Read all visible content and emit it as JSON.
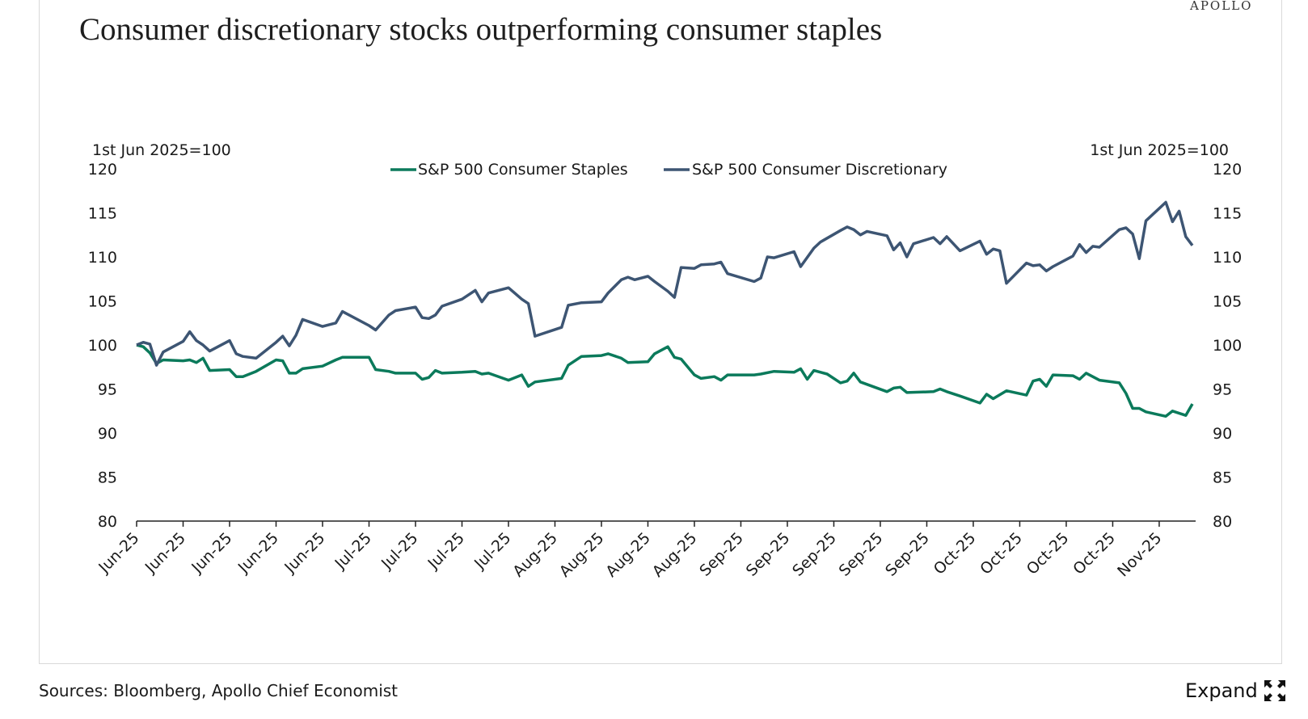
{
  "brand": "APOLLO",
  "title": "Consumer discretionary stocks outperforming consumer staples",
  "footer": {
    "sources": "Sources: Bloomberg, Apollo Chief Economist",
    "expand_label": "Expand",
    "expand_icon": "expand-arrows-icon"
  },
  "chart_data": {
    "type": "line",
    "title": "Consumer discretionary stocks outperforming consumer staples",
    "ylabel_left": "1st Jun 2025=100",
    "ylabel_right": "1st Jun 2025=100",
    "ylim": [
      80,
      120
    ],
    "yticks": [
      80,
      85,
      90,
      95,
      100,
      105,
      110,
      115,
      120
    ],
    "xlim": [
      "2025-06-02",
      "2025-11-08"
    ],
    "xticks": [
      "2025-06-02",
      "2025-06-09",
      "2025-06-16",
      "2025-06-23",
      "2025-06-30",
      "2025-07-07",
      "2025-07-14",
      "2025-07-21",
      "2025-07-28",
      "2025-08-04",
      "2025-08-11",
      "2025-08-18",
      "2025-08-25",
      "2025-09-01",
      "2025-09-08",
      "2025-09-15",
      "2025-09-22",
      "2025-09-29",
      "2025-10-06",
      "2025-10-13",
      "2025-10-20",
      "2025-10-27",
      "2025-11-03"
    ],
    "xtick_labels": [
      "Jun-25",
      "Jun-25",
      "Jun-25",
      "Jun-25",
      "Jun-25",
      "Jul-25",
      "Jul-25",
      "Jul-25",
      "Jul-25",
      "Aug-25",
      "Aug-25",
      "Aug-25",
      "Aug-25",
      "Sep-25",
      "Sep-25",
      "Sep-25",
      "Sep-25",
      "Sep-25",
      "Oct-25",
      "Oct-25",
      "Oct-25",
      "Oct-25",
      "Nov-25"
    ],
    "grid": false,
    "legend_placement": "top",
    "series": [
      {
        "name": "S&P 500 Consumer Staples",
        "color": "#0b7a5b",
        "points": [
          [
            "2025-06-02",
            100
          ],
          [
            "2025-06-03",
            99.8
          ],
          [
            "2025-06-04",
            99.1
          ],
          [
            "2025-06-05",
            97.9
          ],
          [
            "2025-06-06",
            98.3
          ],
          [
            "2025-06-09",
            98.2
          ],
          [
            "2025-06-10",
            98.3
          ],
          [
            "2025-06-11",
            98
          ],
          [
            "2025-06-12",
            98.5
          ],
          [
            "2025-06-13",
            97.1
          ],
          [
            "2025-06-16",
            97.2
          ],
          [
            "2025-06-17",
            96.4
          ],
          [
            "2025-06-18",
            96.4
          ],
          [
            "2025-06-20",
            97
          ],
          [
            "2025-06-23",
            98.3
          ],
          [
            "2025-06-24",
            98.2
          ],
          [
            "2025-06-25",
            96.8
          ],
          [
            "2025-06-26",
            96.8
          ],
          [
            "2025-06-27",
            97.3
          ],
          [
            "2025-06-30",
            97.6
          ],
          [
            "2025-07-02",
            98.3
          ],
          [
            "2025-07-03",
            98.6
          ],
          [
            "2025-07-07",
            98.6
          ],
          [
            "2025-07-08",
            97.2
          ],
          [
            "2025-07-10",
            97.0
          ],
          [
            "2025-07-11",
            96.8
          ],
          [
            "2025-07-14",
            96.8
          ],
          [
            "2025-07-15",
            96.1
          ],
          [
            "2025-07-16",
            96.3
          ],
          [
            "2025-07-17",
            97.1
          ],
          [
            "2025-07-18",
            96.8
          ],
          [
            "2025-07-21",
            96.9
          ],
          [
            "2025-07-23",
            97.0
          ],
          [
            "2025-07-24",
            96.7
          ],
          [
            "2025-07-25",
            96.8
          ],
          [
            "2025-07-28",
            96
          ],
          [
            "2025-07-30",
            96.6
          ],
          [
            "2025-07-31",
            95.3
          ],
          [
            "2025-08-01",
            95.8
          ],
          [
            "2025-08-05",
            96.2
          ],
          [
            "2025-08-06",
            97.7
          ],
          [
            "2025-08-08",
            98.7
          ],
          [
            "2025-08-11",
            98.8
          ],
          [
            "2025-08-12",
            99
          ],
          [
            "2025-08-14",
            98.5
          ],
          [
            "2025-08-15",
            98
          ],
          [
            "2025-08-18",
            98.1
          ],
          [
            "2025-08-19",
            99
          ],
          [
            "2025-08-21",
            99.8
          ],
          [
            "2025-08-22",
            98.6
          ],
          [
            "2025-08-23",
            98.4
          ],
          [
            "2025-08-25",
            96.6
          ],
          [
            "2025-08-26",
            96.2
          ],
          [
            "2025-08-28",
            96.4
          ],
          [
            "2025-08-29",
            96
          ],
          [
            "2025-08-30",
            96.6
          ],
          [
            "2025-09-03",
            96.6
          ],
          [
            "2025-09-04",
            96.7
          ],
          [
            "2025-09-06",
            97.0
          ],
          [
            "2025-09-09",
            96.9
          ],
          [
            "2025-09-10",
            97.3
          ],
          [
            "2025-09-11",
            96.1
          ],
          [
            "2025-09-12",
            97.1
          ],
          [
            "2025-09-14",
            96.7
          ],
          [
            "2025-09-16",
            95.7
          ],
          [
            "2025-09-17",
            95.9
          ],
          [
            "2025-09-18",
            96.8
          ],
          [
            "2025-09-19",
            95.8
          ],
          [
            "2025-09-23",
            94.7
          ],
          [
            "2025-09-24",
            95.1
          ],
          [
            "2025-09-25",
            95.2
          ],
          [
            "2025-09-26",
            94.6
          ],
          [
            "2025-09-30",
            94.7
          ],
          [
            "2025-10-01",
            95
          ],
          [
            "2025-10-02",
            94.7
          ],
          [
            "2025-10-04",
            94.2
          ],
          [
            "2025-10-07",
            93.4
          ],
          [
            "2025-10-08",
            94.4
          ],
          [
            "2025-10-09",
            93.9
          ],
          [
            "2025-10-11",
            94.8
          ],
          [
            "2025-10-14",
            94.3
          ],
          [
            "2025-10-15",
            95.9
          ],
          [
            "2025-10-16",
            96.1
          ],
          [
            "2025-10-17",
            95.3
          ],
          [
            "2025-10-18",
            96.6
          ],
          [
            "2025-10-21",
            96.5
          ],
          [
            "2025-10-22",
            96.1
          ],
          [
            "2025-10-23",
            96.8
          ],
          [
            "2025-10-25",
            96.0
          ],
          [
            "2025-10-28",
            95.7
          ],
          [
            "2025-10-29",
            94.5
          ],
          [
            "2025-10-30",
            92.8
          ],
          [
            "2025-10-31",
            92.8
          ],
          [
            "2025-11-01",
            92.4
          ],
          [
            "2025-11-04",
            91.9
          ],
          [
            "2025-11-05",
            92.5
          ],
          [
            "2025-11-07",
            92
          ],
          [
            "2025-11-08",
            93.3
          ]
        ]
      },
      {
        "name": "S&P 500 Consumer Discretionary",
        "color": "#3d5573",
        "points": [
          [
            "2025-06-02",
            100
          ],
          [
            "2025-06-03",
            100.3
          ],
          [
            "2025-06-04",
            100.1
          ],
          [
            "2025-06-05",
            97.7
          ],
          [
            "2025-06-06",
            99.2
          ],
          [
            "2025-06-09",
            100.4
          ],
          [
            "2025-06-10",
            101.5
          ],
          [
            "2025-06-11",
            100.5
          ],
          [
            "2025-06-12",
            100
          ],
          [
            "2025-06-13",
            99.3
          ],
          [
            "2025-06-16",
            100.5
          ],
          [
            "2025-06-17",
            99
          ],
          [
            "2025-06-18",
            98.7
          ],
          [
            "2025-06-20",
            98.5
          ],
          [
            "2025-06-23",
            100.3
          ],
          [
            "2025-06-24",
            101
          ],
          [
            "2025-06-25",
            99.9
          ],
          [
            "2025-06-26",
            101.1
          ],
          [
            "2025-06-27",
            102.9
          ],
          [
            "2025-06-30",
            102.1
          ],
          [
            "2025-07-02",
            102.5
          ],
          [
            "2025-07-03",
            103.8
          ],
          [
            "2025-07-07",
            102.2
          ],
          [
            "2025-07-08",
            101.7
          ],
          [
            "2025-07-10",
            103.4
          ],
          [
            "2025-07-11",
            103.9
          ],
          [
            "2025-07-14",
            104.3
          ],
          [
            "2025-07-15",
            103.1
          ],
          [
            "2025-07-16",
            103
          ],
          [
            "2025-07-17",
            103.4
          ],
          [
            "2025-07-18",
            104.4
          ],
          [
            "2025-07-21",
            105.2
          ],
          [
            "2025-07-23",
            106.2
          ],
          [
            "2025-07-24",
            104.9
          ],
          [
            "2025-07-25",
            105.9
          ],
          [
            "2025-07-28",
            106.5
          ],
          [
            "2025-07-30",
            105.2
          ],
          [
            "2025-07-31",
            104.7
          ],
          [
            "2025-08-01",
            101
          ],
          [
            "2025-08-05",
            102
          ],
          [
            "2025-08-06",
            104.5
          ],
          [
            "2025-08-08",
            104.8
          ],
          [
            "2025-08-11",
            104.9
          ],
          [
            "2025-08-12",
            105.9
          ],
          [
            "2025-08-14",
            107.4
          ],
          [
            "2025-08-15",
            107.7
          ],
          [
            "2025-08-16",
            107.4
          ],
          [
            "2025-08-18",
            107.8
          ],
          [
            "2025-08-19",
            107.2
          ],
          [
            "2025-08-21",
            106.1
          ],
          [
            "2025-08-22",
            105.4
          ],
          [
            "2025-08-23",
            108.8
          ],
          [
            "2025-08-25",
            108.7
          ],
          [
            "2025-08-26",
            109.1
          ],
          [
            "2025-08-28",
            109.2
          ],
          [
            "2025-08-29",
            109.4
          ],
          [
            "2025-08-30",
            108.1
          ],
          [
            "2025-09-03",
            107.2
          ],
          [
            "2025-09-04",
            107.6
          ],
          [
            "2025-09-05",
            110
          ],
          [
            "2025-09-06",
            109.9
          ],
          [
            "2025-09-09",
            110.6
          ],
          [
            "2025-09-10",
            108.9
          ],
          [
            "2025-09-12",
            111
          ],
          [
            "2025-09-13",
            111.7
          ],
          [
            "2025-09-16",
            113.0
          ],
          [
            "2025-09-17",
            113.4
          ],
          [
            "2025-09-18",
            113.1
          ],
          [
            "2025-09-19",
            112.5
          ],
          [
            "2025-09-20",
            112.9
          ],
          [
            "2025-09-23",
            112.4
          ],
          [
            "2025-09-24",
            110.8
          ],
          [
            "2025-09-25",
            111.6
          ],
          [
            "2025-09-26",
            110
          ],
          [
            "2025-09-27",
            111.5
          ],
          [
            "2025-09-30",
            112.2
          ],
          [
            "2025-10-01",
            111.5
          ],
          [
            "2025-10-02",
            112.3
          ],
          [
            "2025-10-04",
            110.7
          ],
          [
            "2025-10-07",
            111.8
          ],
          [
            "2025-10-08",
            110.3
          ],
          [
            "2025-10-09",
            110.9
          ],
          [
            "2025-10-10",
            110.7
          ],
          [
            "2025-10-11",
            107
          ],
          [
            "2025-10-14",
            109.3
          ],
          [
            "2025-10-15",
            109.0
          ],
          [
            "2025-10-16",
            109.1
          ],
          [
            "2025-10-17",
            108.4
          ],
          [
            "2025-10-18",
            108.9
          ],
          [
            "2025-10-21",
            110.1
          ],
          [
            "2025-10-22",
            111.4
          ],
          [
            "2025-10-23",
            110.5
          ],
          [
            "2025-10-24",
            111.2
          ],
          [
            "2025-10-25",
            111.1
          ],
          [
            "2025-10-28",
            113.1
          ],
          [
            "2025-10-29",
            113.3
          ],
          [
            "2025-10-30",
            112.6
          ],
          [
            "2025-10-31",
            109.8
          ],
          [
            "2025-11-01",
            114.1
          ],
          [
            "2025-11-04",
            116.2
          ],
          [
            "2025-11-05",
            114.0
          ],
          [
            "2025-11-06",
            115.2
          ],
          [
            "2025-11-07",
            112.3
          ],
          [
            "2025-11-08",
            111.3
          ]
        ]
      }
    ]
  }
}
